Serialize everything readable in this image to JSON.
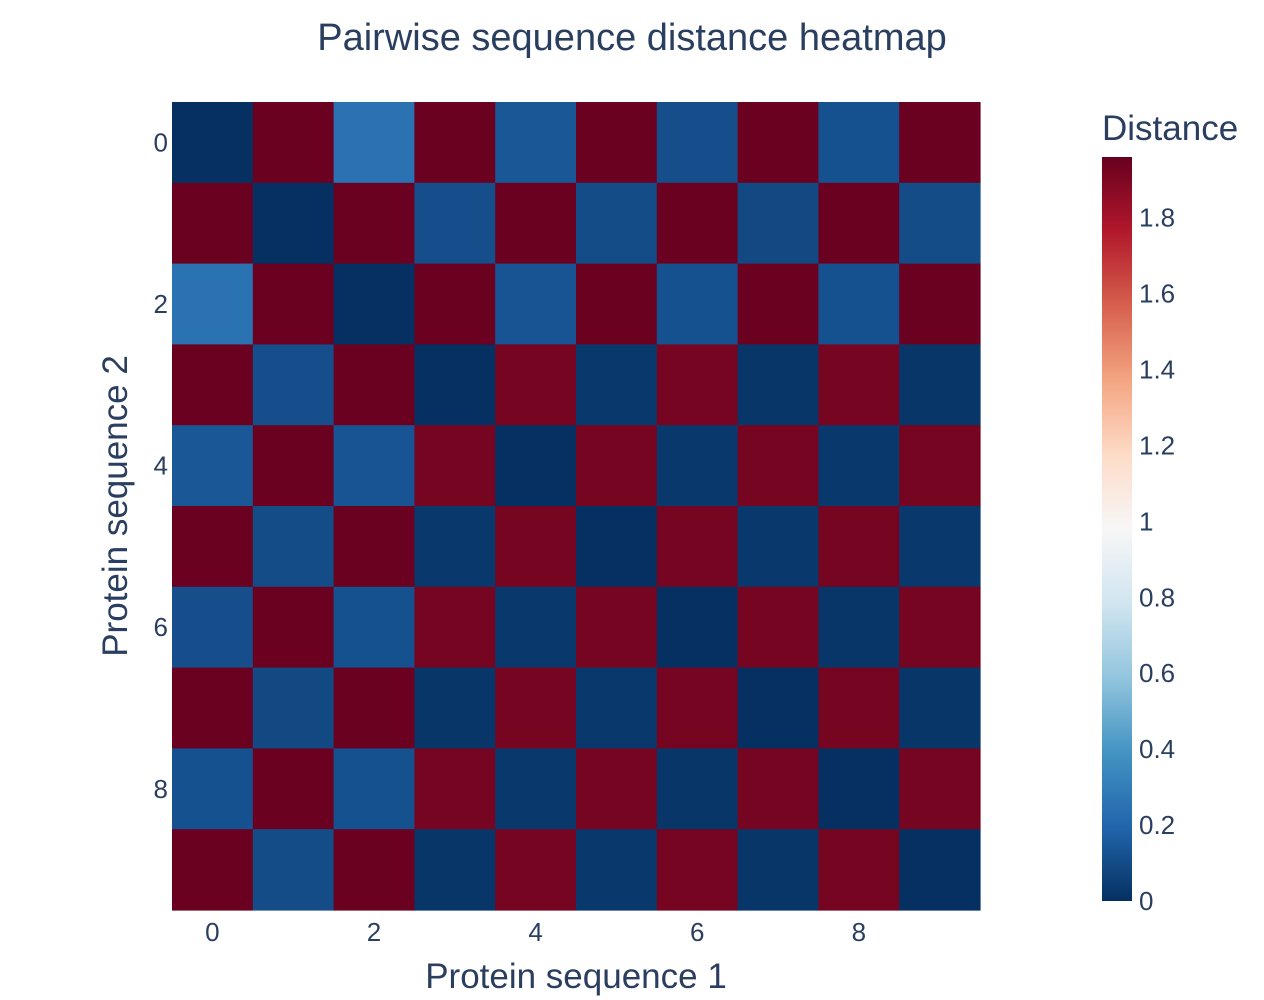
{
  "chart_data": {
    "type": "heatmap",
    "title": "Pairwise sequence distance heatmap",
    "xlabel": "Protein sequence 1",
    "ylabel": "Protein sequence 2",
    "x": [
      0,
      1,
      2,
      3,
      4,
      5,
      6,
      7,
      8,
      9
    ],
    "y": [
      0,
      1,
      2,
      3,
      4,
      5,
      6,
      7,
      8,
      9
    ],
    "x_ticks": [
      "0",
      "2",
      "4",
      "6",
      "8"
    ],
    "y_ticks": [
      "0",
      "2",
      "4",
      "6",
      "8"
    ],
    "z": [
      [
        0.0,
        1.95,
        0.25,
        1.95,
        0.14,
        1.95,
        0.11,
        1.95,
        0.12,
        1.95
      ],
      [
        1.95,
        0.0,
        1.95,
        0.11,
        1.95,
        0.1,
        1.95,
        0.09,
        1.95,
        0.1
      ],
      [
        0.25,
        1.95,
        0.0,
        1.95,
        0.13,
        1.95,
        0.12,
        1.95,
        0.12,
        1.95
      ],
      [
        1.95,
        0.11,
        1.95,
        0.0,
        1.92,
        0.03,
        1.92,
        0.02,
        1.92,
        0.02
      ],
      [
        0.14,
        1.95,
        0.13,
        1.92,
        0.0,
        1.92,
        0.03,
        1.92,
        0.03,
        1.92
      ],
      [
        1.95,
        0.1,
        1.95,
        0.03,
        1.92,
        0.0,
        1.92,
        0.03,
        1.92,
        0.03
      ],
      [
        0.11,
        1.95,
        0.12,
        1.92,
        0.03,
        1.92,
        0.0,
        1.92,
        0.02,
        1.92
      ],
      [
        1.95,
        0.09,
        1.95,
        0.02,
        1.92,
        0.03,
        1.92,
        0.0,
        1.92,
        0.02
      ],
      [
        0.12,
        1.95,
        0.12,
        1.92,
        0.03,
        1.92,
        0.02,
        1.92,
        0.0,
        1.92
      ],
      [
        1.95,
        0.1,
        1.95,
        0.02,
        1.92,
        0.03,
        1.92,
        0.02,
        1.92,
        0.0
      ]
    ],
    "zmin": 0,
    "zmax": 1.96,
    "colorscale": "RdBu reversed",
    "colorbar": {
      "title": "Distance",
      "ticks": [
        0,
        0.2,
        0.4,
        0.6,
        0.8,
        1,
        1.2,
        1.4,
        1.6,
        1.8
      ],
      "tick_labels": [
        "0",
        "0.2",
        "0.4",
        "0.6",
        "0.8",
        "1",
        "1.2",
        "1.4",
        "1.6",
        "1.8"
      ]
    },
    "colorscale_stops": [
      [
        0.0,
        "#053061"
      ],
      [
        0.1,
        "#2166ac"
      ],
      [
        0.2,
        "#4393c3"
      ],
      [
        0.3,
        "#92c5de"
      ],
      [
        0.4,
        "#d1e5f0"
      ],
      [
        0.5,
        "#f7f7f7"
      ],
      [
        0.6,
        "#fddbc7"
      ],
      [
        0.7,
        "#f4a582"
      ],
      [
        0.8,
        "#d6604d"
      ],
      [
        0.9,
        "#b2182b"
      ],
      [
        1.0,
        "#67001f"
      ]
    ]
  }
}
